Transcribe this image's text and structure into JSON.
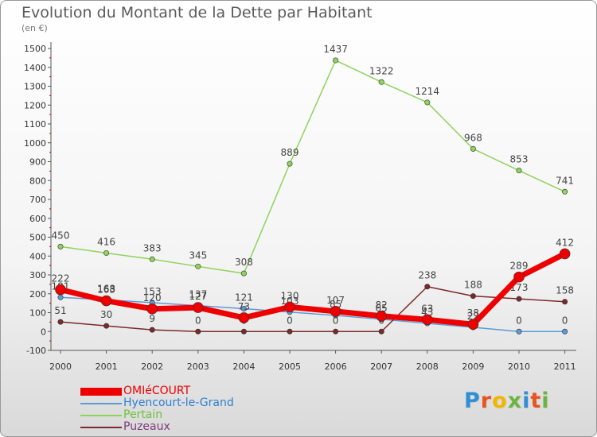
{
  "title": "Evolution du Montant de la Dette par Habitant",
  "subtitle": "(en €)",
  "logo": {
    "text": "Proxiti",
    "letters": [
      {
        "ch": "P",
        "color": "#2e8fd6"
      },
      {
        "ch": "r",
        "color": "#e8541f"
      },
      {
        "ch": "o",
        "color": "#f2b600"
      },
      {
        "ch": "x",
        "color": "#6db33f"
      },
      {
        "ch": "i",
        "color": "#2e8fd6"
      },
      {
        "ch": "t",
        "color": "#e8541f"
      },
      {
        "ch": "i",
        "color": "#6db33f"
      }
    ]
  },
  "chart_data": {
    "type": "line",
    "title": "Evolution du Montant de la Dette par Habitant",
    "ylabel": "(en €)",
    "xlabel": "",
    "ylim": [
      -100,
      1500
    ],
    "yticks": [
      -100,
      0,
      100,
      200,
      300,
      400,
      500,
      600,
      700,
      800,
      900,
      1000,
      1100,
      1200,
      1300,
      1400,
      1500
    ],
    "categories": [
      "2000",
      "2001",
      "2002",
      "2003",
      "2004",
      "2005",
      "2006",
      "2007",
      "2008",
      "2009",
      "2010",
      "2011"
    ],
    "grid": false,
    "legend": "bottom-left",
    "series": [
      {
        "name": "Pertain",
        "color": "#8fd35b",
        "values": [
          450,
          416,
          383,
          345,
          308,
          889,
          1437,
          1322,
          1214,
          968,
          853,
          741
        ],
        "labels": [
          "450",
          "416",
          "383",
          "345",
          "308",
          "889",
          "1437",
          "1322",
          "1214",
          "968",
          "853",
          "741"
        ]
      },
      {
        "name": "Hyencourt-le-Grand",
        "color": "#5b9bd5",
        "values": [
          181,
          168,
          153,
          137,
          121,
          103,
          85,
          65,
          43,
          22,
          0,
          0
        ],
        "labels": [
          "181",
          "168",
          "153",
          "137",
          "121",
          "103",
          "85",
          "65",
          "43",
          "22",
          "0",
          "0"
        ]
      },
      {
        "name": "Puzeaux",
        "color": "#7a2a2a",
        "values": [
          51,
          30,
          9,
          0,
          0,
          0,
          0,
          0,
          238,
          188,
          173,
          158
        ],
        "labels": [
          "51",
          "30",
          "9",
          "0",
          "0",
          "0",
          "0",
          "0",
          "238",
          "188",
          "173",
          "158"
        ]
      },
      {
        "name": "OMIéCOURT",
        "color": "#ee0000",
        "values": [
          222,
          163,
          120,
          127,
          73,
          130,
          107,
          82,
          63,
          38,
          289,
          412
        ],
        "labels": [
          "222",
          "163",
          "120",
          "127",
          "73",
          "130",
          "107",
          "82",
          "63",
          "38",
          "289",
          "412"
        ]
      }
    ],
    "legend_order": [
      "OMIéCOURT",
      "Hyencourt-le-Grand",
      "Pertain",
      "Puzeaux"
    ]
  }
}
